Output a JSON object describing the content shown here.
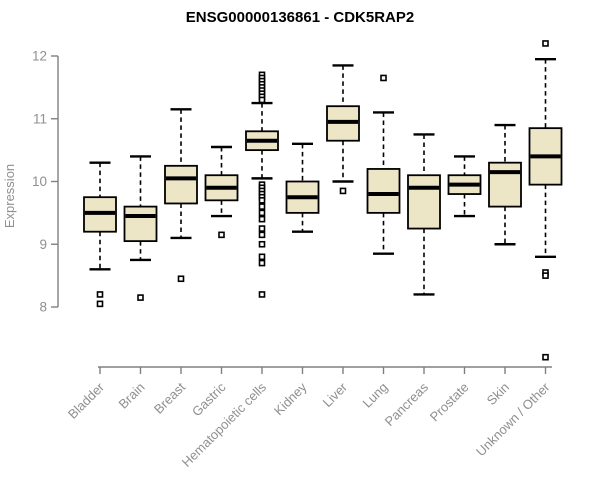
{
  "chart_data": {
    "type": "boxplot",
    "title": "ENSG00000136861 - CDK5RAP2",
    "ylabel": "Expression",
    "xlabel": "",
    "ylim": [
      8,
      12
    ],
    "yticks": [
      12,
      11,
      10,
      9,
      8
    ],
    "grid": false,
    "legend": "none",
    "categories": [
      "Bladder",
      "Brain",
      "Breast",
      "Gastric",
      "Hematopoietic cells",
      "Kidney",
      "Liver",
      "Lung",
      "Pancreas",
      "Prostate",
      "Skin",
      "Unknown / Other"
    ],
    "boxes": [
      {
        "category": "Bladder",
        "whisker_low": 8.6,
        "q1": 9.2,
        "median": 9.5,
        "q3": 9.75,
        "whisker_high": 10.3,
        "outliers": [
          8.2,
          8.05
        ]
      },
      {
        "category": "Brain",
        "whisker_low": 8.75,
        "q1": 9.05,
        "median": 9.45,
        "q3": 9.6,
        "whisker_high": 10.4,
        "outliers": [
          8.15
        ]
      },
      {
        "category": "Breast",
        "whisker_low": 9.1,
        "q1": 9.65,
        "median": 10.05,
        "q3": 10.25,
        "whisker_high": 11.15,
        "outliers": [
          8.45
        ]
      },
      {
        "category": "Gastric",
        "whisker_low": 9.45,
        "q1": 9.7,
        "median": 9.9,
        "q3": 10.1,
        "whisker_high": 10.55,
        "outliers": [
          9.15
        ]
      },
      {
        "category": "Hematopoietic cells",
        "whisker_low": 10.05,
        "q1": 10.5,
        "median": 10.65,
        "q3": 10.8,
        "whisker_high": 11.25,
        "outliers": [
          11.7,
          11.65,
          11.6,
          11.55,
          11.5,
          11.45,
          11.4,
          11.35,
          11.3,
          9.95,
          9.9,
          9.85,
          9.8,
          9.75,
          9.7,
          9.6,
          9.5,
          9.4,
          9.25,
          9.15,
          9.0,
          8.8,
          8.7,
          8.2
        ]
      },
      {
        "category": "Kidney",
        "whisker_low": 9.2,
        "q1": 9.5,
        "median": 9.75,
        "q3": 10.0,
        "whisker_high": 10.6,
        "outliers": []
      },
      {
        "category": "Liver",
        "whisker_low": 10.0,
        "q1": 10.65,
        "median": 10.95,
        "q3": 11.2,
        "whisker_high": 11.85,
        "outliers": [
          9.85
        ]
      },
      {
        "category": "Lung",
        "whisker_low": 8.85,
        "q1": 9.5,
        "median": 9.8,
        "q3": 10.2,
        "whisker_high": 11.1,
        "outliers": [
          11.65
        ]
      },
      {
        "category": "Pancreas",
        "whisker_low": 8.2,
        "q1": 9.25,
        "median": 9.9,
        "q3": 10.1,
        "whisker_high": 10.75,
        "outliers": []
      },
      {
        "category": "Prostate",
        "whisker_low": 9.45,
        "q1": 9.8,
        "median": 9.95,
        "q3": 10.1,
        "whisker_high": 10.4,
        "outliers": []
      },
      {
        "category": "Skin",
        "whisker_low": 9.0,
        "q1": 9.6,
        "median": 10.15,
        "q3": 10.3,
        "whisker_high": 10.9,
        "outliers": []
      },
      {
        "category": "Unknown / Other",
        "whisker_low": 8.8,
        "q1": 9.95,
        "median": 10.4,
        "q3": 10.85,
        "whisker_high": 11.95,
        "outliers": [
          12.2,
          8.55,
          8.5,
          7.2
        ]
      }
    ],
    "colors": {
      "box_fill": "#ECE6C6",
      "box_border": "#000000",
      "median": "#000000",
      "whisker": "#000000",
      "outlier_border": "#000000",
      "outlier_fill": "#FFFFFF",
      "axis": "#808080",
      "labels": "#8F8F8F",
      "title": "#000000",
      "background": "#FFFFFF"
    }
  }
}
